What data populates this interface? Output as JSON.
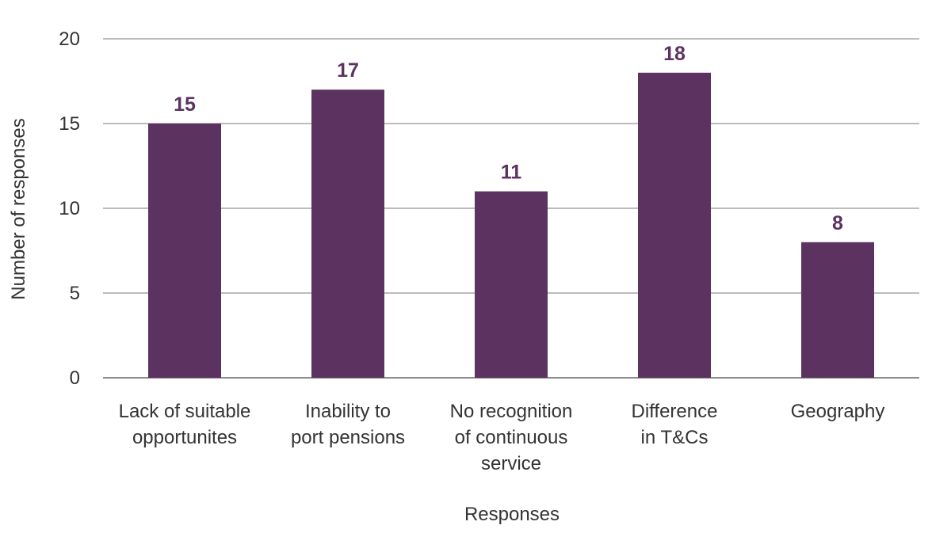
{
  "chart_data": {
    "type": "bar",
    "categories": [
      [
        "Lack of suitable",
        "opportunites"
      ],
      [
        "Inability to",
        "port pensions"
      ],
      [
        "No recognition",
        "of continuous",
        "service"
      ],
      [
        "Difference",
        "in T&Cs"
      ],
      [
        "Geography"
      ]
    ],
    "values": [
      15,
      17,
      11,
      18,
      8
    ],
    "xlabel": "Responses",
    "ylabel": "Number of responses",
    "ylim": [
      0,
      20
    ],
    "yticks": [
      0,
      5,
      10,
      15,
      20
    ],
    "grid": true,
    "legend": "none",
    "bar_color": "#5c3360",
    "label_color": "#5c3360"
  }
}
